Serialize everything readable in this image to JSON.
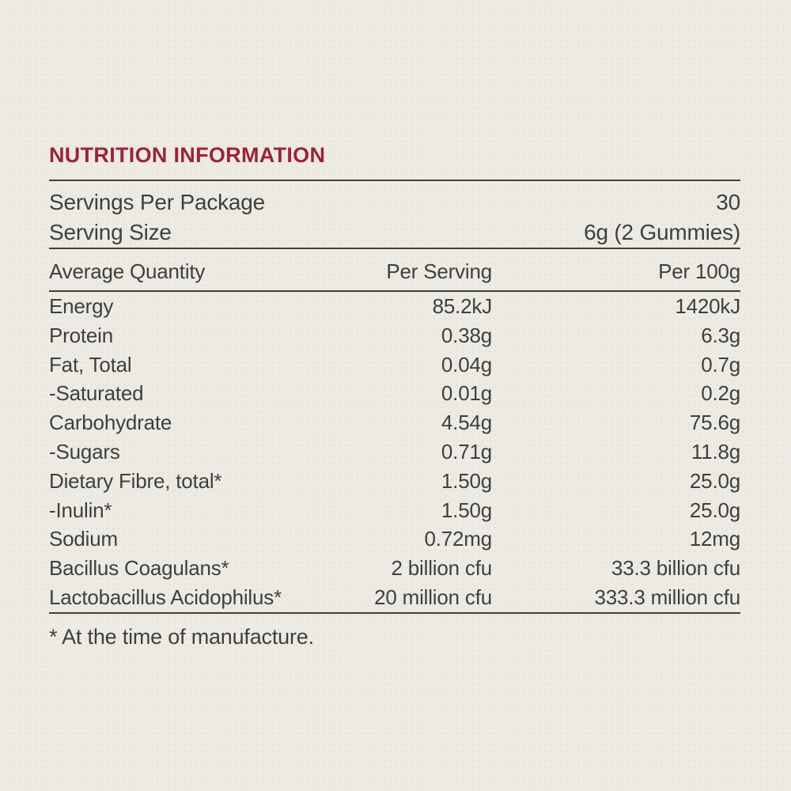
{
  "panel": {
    "title": "NUTRITION INFORMATION",
    "colors": {
      "title_red": "#992538",
      "body_text": "#3B413B",
      "background": "#EDEAE3",
      "rule": "#3E4138"
    },
    "serving_info": [
      {
        "label": "Servings Per Package",
        "value": "30"
      },
      {
        "label": "Serving Size",
        "value": "6g (2 Gummies)"
      }
    ],
    "columns": [
      "Average Quantity",
      "Per Serving",
      "Per 100g"
    ],
    "rows": [
      {
        "label": "Energy",
        "per_serving": "85.2kJ",
        "per_100g": "1420kJ"
      },
      {
        "label": "Protein",
        "per_serving": "0.38g",
        "per_100g": "6.3g"
      },
      {
        "label": "Fat, Total",
        "per_serving": "0.04g",
        "per_100g": "0.7g"
      },
      {
        "label": "-Saturated",
        "per_serving": "0.01g",
        "per_100g": "0.2g"
      },
      {
        "label": "Carbohydrate",
        "per_serving": "4.54g",
        "per_100g": "75.6g"
      },
      {
        "label": "-Sugars",
        "per_serving": "0.71g",
        "per_100g": "11.8g"
      },
      {
        "label": "Dietary Fibre, total*",
        "per_serving": "1.50g",
        "per_100g": "25.0g"
      },
      {
        "label": "-Inulin*",
        "per_serving": "1.50g",
        "per_100g": "25.0g"
      },
      {
        "label": "Sodium",
        "per_serving": "0.72mg",
        "per_100g": "12mg"
      },
      {
        "label": "Bacillus Coagulans*",
        "per_serving": "2 billion cfu",
        "per_100g": "33.3 billion cfu"
      },
      {
        "label": "Lactobacillus Acidophilus*",
        "per_serving": "20 million cfu",
        "per_100g": "333.3 million cfu"
      }
    ],
    "footnote": "* At the time of manufacture."
  }
}
